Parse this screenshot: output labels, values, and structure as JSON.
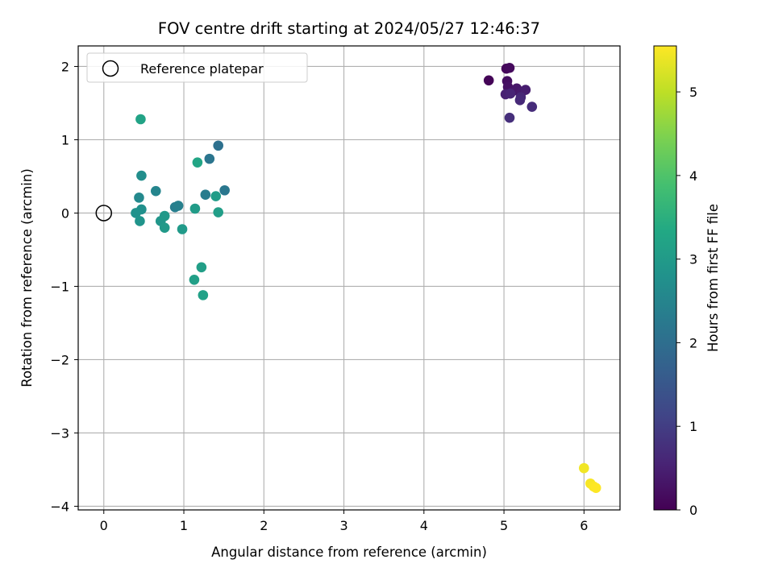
{
  "chart_data": {
    "type": "scatter",
    "title": "FOV centre drift starting at 2024/05/27 12:46:37",
    "xlabel": "Angular distance from reference (arcmin)",
    "ylabel": "Rotation from reference (arcmin)",
    "xlim": [
      -0.32,
      6.45
    ],
    "ylim": [
      -4.05,
      2.28
    ],
    "xticks": [
      0,
      1,
      2,
      3,
      4,
      5,
      6
    ],
    "yticks": [
      -4,
      -3,
      -2,
      -1,
      0,
      1,
      2
    ],
    "grid": true,
    "legend": {
      "position": "top-left",
      "entries": [
        "Reference platepar"
      ]
    },
    "reference": {
      "x": 0,
      "y": 0
    },
    "colorbar": {
      "label": "Hours from first FF file",
      "colormap": "viridis",
      "range": [
        0,
        5.55
      ],
      "ticks": [
        0,
        1,
        2,
        3,
        4,
        5
      ]
    },
    "points": [
      {
        "x": 4.81,
        "y": 1.81,
        "t": 0.05
      },
      {
        "x": 5.03,
        "y": 1.97,
        "t": 0.1
      },
      {
        "x": 5.07,
        "y": 1.98,
        "t": 0.15
      },
      {
        "x": 5.04,
        "y": 1.8,
        "t": 0.2
      },
      {
        "x": 5.05,
        "y": 1.72,
        "t": 0.25
      },
      {
        "x": 5.12,
        "y": 1.67,
        "t": 0.3
      },
      {
        "x": 5.16,
        "y": 1.7,
        "t": 0.35
      },
      {
        "x": 5.22,
        "y": 1.65,
        "t": 0.4
      },
      {
        "x": 5.27,
        "y": 1.68,
        "t": 0.45
      },
      {
        "x": 5.02,
        "y": 1.62,
        "t": 0.5
      },
      {
        "x": 5.08,
        "y": 1.63,
        "t": 0.55
      },
      {
        "x": 5.21,
        "y": 1.58,
        "t": 0.6
      },
      {
        "x": 5.2,
        "y": 1.54,
        "t": 0.65
      },
      {
        "x": 5.35,
        "y": 1.45,
        "t": 0.7
      },
      {
        "x": 5.07,
        "y": 1.3,
        "t": 0.75
      },
      {
        "x": 1.43,
        "y": 0.92,
        "t": 2.05
      },
      {
        "x": 1.32,
        "y": 0.74,
        "t": 2.15
      },
      {
        "x": 1.51,
        "y": 0.31,
        "t": 2.2
      },
      {
        "x": 1.27,
        "y": 0.25,
        "t": 2.3
      },
      {
        "x": 0.89,
        "y": 0.08,
        "t": 2.35
      },
      {
        "x": 0.93,
        "y": 0.1,
        "t": 2.4
      },
      {
        "x": 0.65,
        "y": 0.3,
        "t": 2.5
      },
      {
        "x": 0.44,
        "y": 0.21,
        "t": 2.6
      },
      {
        "x": 0.47,
        "y": 0.51,
        "t": 2.7
      },
      {
        "x": 0.47,
        "y": 0.05,
        "t": 2.75
      },
      {
        "x": 0.4,
        "y": 0.0,
        "t": 2.8
      },
      {
        "x": 0.45,
        "y": -0.11,
        "t": 2.85
      },
      {
        "x": 0.71,
        "y": -0.11,
        "t": 2.9
      },
      {
        "x": 0.76,
        "y": -0.04,
        "t": 2.95
      },
      {
        "x": 0.76,
        "y": -0.2,
        "t": 2.97
      },
      {
        "x": 0.98,
        "y": -0.22,
        "t": 3.0
      },
      {
        "x": 1.14,
        "y": 0.06,
        "t": 3.02
      },
      {
        "x": 1.4,
        "y": 0.23,
        "t": 3.05
      },
      {
        "x": 1.43,
        "y": 0.01,
        "t": 3.08
      },
      {
        "x": 1.22,
        "y": -0.74,
        "t": 3.1
      },
      {
        "x": 1.13,
        "y": -0.91,
        "t": 3.12
      },
      {
        "x": 1.24,
        "y": -1.12,
        "t": 3.15
      },
      {
        "x": 0.46,
        "y": 1.28,
        "t": 3.2
      },
      {
        "x": 1.17,
        "y": 0.69,
        "t": 3.25
      },
      {
        "x": 6.0,
        "y": -3.48,
        "t": 5.45
      },
      {
        "x": 6.08,
        "y": -3.69,
        "t": 5.5
      },
      {
        "x": 6.12,
        "y": -3.73,
        "t": 5.52
      },
      {
        "x": 6.15,
        "y": -3.75,
        "t": 5.55
      }
    ]
  },
  "colors": {
    "grid": "#b0b0b0",
    "axis": "#000000",
    "legend_border": "#cccccc"
  }
}
